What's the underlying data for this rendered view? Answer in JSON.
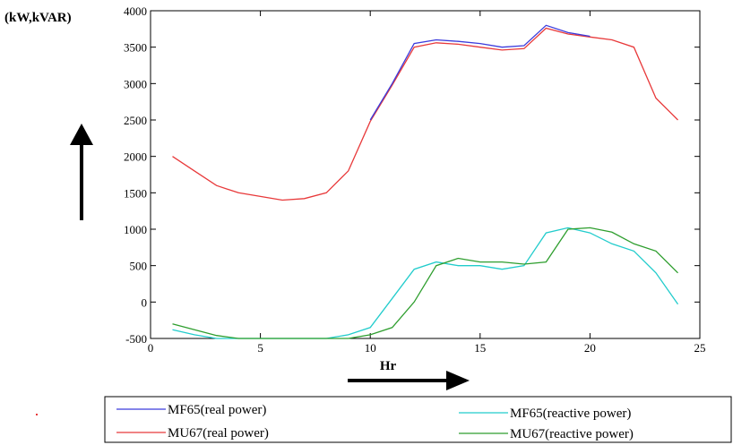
{
  "chart_data": {
    "type": "line",
    "title": "",
    "ylabel": "(kW,kVAR)",
    "xlabel": "Hr",
    "xlim": [
      0,
      25
    ],
    "ylim": [
      -500,
      4000
    ],
    "xticks": [
      0,
      5,
      10,
      15,
      20,
      25
    ],
    "yticks": [
      -500,
      0,
      500,
      1000,
      1500,
      2000,
      2500,
      3000,
      3500,
      4000
    ],
    "grid": false,
    "legend_position": "bottom",
    "series": [
      {
        "name": "MF65(real power)",
        "color": "#3b3bdc",
        "x": [
          10,
          11,
          12,
          13,
          14,
          15,
          16,
          17,
          18,
          19,
          20
        ],
        "y": [
          2500,
          3000,
          3550,
          3600,
          3580,
          3550,
          3500,
          3520,
          3800,
          3700,
          3650
        ]
      },
      {
        "name": "MU67(real power)",
        "color": "#e8393a",
        "x": [
          1,
          2,
          3,
          4,
          5,
          6,
          7,
          8,
          9,
          10,
          11,
          12,
          13,
          14,
          15,
          16,
          17,
          18,
          19,
          20,
          21,
          22,
          23,
          24
        ],
        "y": [
          2000,
          1800,
          1600,
          1500,
          1450,
          1400,
          1420,
          1500,
          1800,
          2480,
          2980,
          3500,
          3560,
          3540,
          3500,
          3460,
          3480,
          3760,
          3680,
          3640,
          3600,
          3500,
          2800,
          2500
        ]
      },
      {
        "name": "MF65(reactive power)",
        "color": "#22cccc",
        "x": [
          1,
          2,
          3,
          4,
          5,
          6,
          7,
          8,
          9,
          10,
          11,
          12,
          13,
          14,
          15,
          16,
          17,
          18,
          19,
          20,
          21,
          22,
          23,
          24
        ],
        "y": [
          -380,
          -450,
          -500,
          -500,
          -500,
          -500,
          -500,
          -500,
          -450,
          -350,
          50,
          450,
          550,
          500,
          500,
          450,
          500,
          950,
          1020,
          950,
          800,
          700,
          400,
          -30
        ]
      },
      {
        "name": "MU67(reactive power)",
        "color": "#2e9e2e",
        "x": [
          1,
          2,
          3,
          4,
          5,
          6,
          7,
          8,
          9,
          10,
          11,
          12,
          13,
          14,
          15,
          16,
          17,
          18,
          19,
          20,
          21,
          22,
          23,
          24
        ],
        "y": [
          -300,
          -380,
          -460,
          -500,
          -500,
          -500,
          -500,
          -500,
          -500,
          -450,
          -350,
          0,
          500,
          600,
          550,
          550,
          520,
          550,
          1000,
          1020,
          960,
          800,
          700,
          400
        ]
      }
    ]
  }
}
